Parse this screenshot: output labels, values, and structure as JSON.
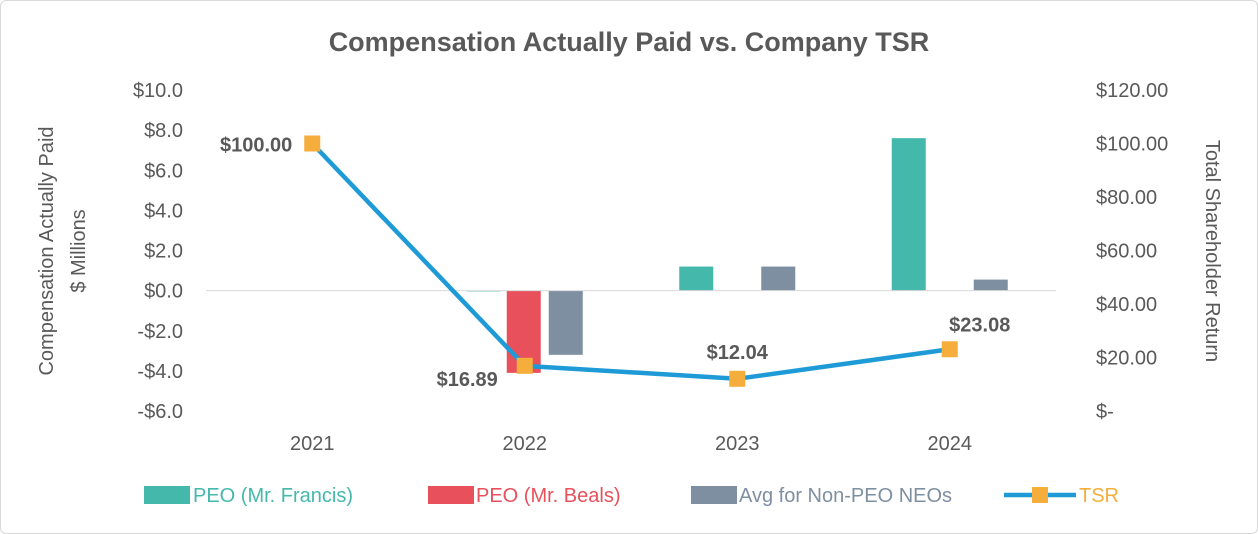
{
  "chart_data": {
    "type": "bar+line",
    "title": "Compensation Actually Paid vs. Company TSR",
    "categories": [
      "2021",
      "2022",
      "2023",
      "2024"
    ],
    "y_left": {
      "label_line1": "Compensation Actually Paid",
      "label_line2": "$ Millions",
      "range": [
        -6,
        10
      ],
      "ticks": [
        10,
        8,
        6,
        4,
        2,
        0,
        -2,
        -4,
        -6
      ],
      "tick_labels": [
        "$10.0",
        "$8.0",
        "$6.0",
        "$4.0",
        "$2.0",
        "$0.0",
        "-$2.0",
        "-$4.0",
        "-$6.0"
      ]
    },
    "y_right": {
      "label": "Total Shareholder Return",
      "range": [
        0,
        120
      ],
      "ticks": [
        120,
        100,
        80,
        60,
        40,
        20,
        0
      ],
      "tick_labels": [
        "$120.00",
        "$100.00",
        "$80.00",
        "$60.00",
        "$40.00",
        "$20.00",
        "$-"
      ]
    },
    "bar_series": [
      {
        "name": "PEO (Mr. Francis)",
        "color": "#45B8AC",
        "values": [
          null,
          0.0,
          1.2,
          7.6
        ]
      },
      {
        "name": "PEO (Mr. Beals)",
        "color": "#E8505B",
        "values": [
          null,
          -4.1,
          null,
          null
        ]
      },
      {
        "name": "Avg for Non-PEO NEOs",
        "color": "#7F8FA2",
        "values": [
          null,
          -3.2,
          1.2,
          0.55
        ]
      }
    ],
    "line_series": {
      "name": "TSR",
      "line_color": "#1E9BD7",
      "marker_color": "#F5AE3C",
      "values": [
        100.0,
        16.89,
        12.04,
        23.08
      ],
      "labels": [
        "$100.00",
        "$16.89",
        "$12.04",
        "$23.08"
      ]
    },
    "legend": [
      "PEO (Mr. Francis)",
      "PEO (Mr. Beals)",
      "Avg for Non-PEO NEOs",
      "TSR"
    ],
    "legend_position": "bottom",
    "grid": false
  }
}
